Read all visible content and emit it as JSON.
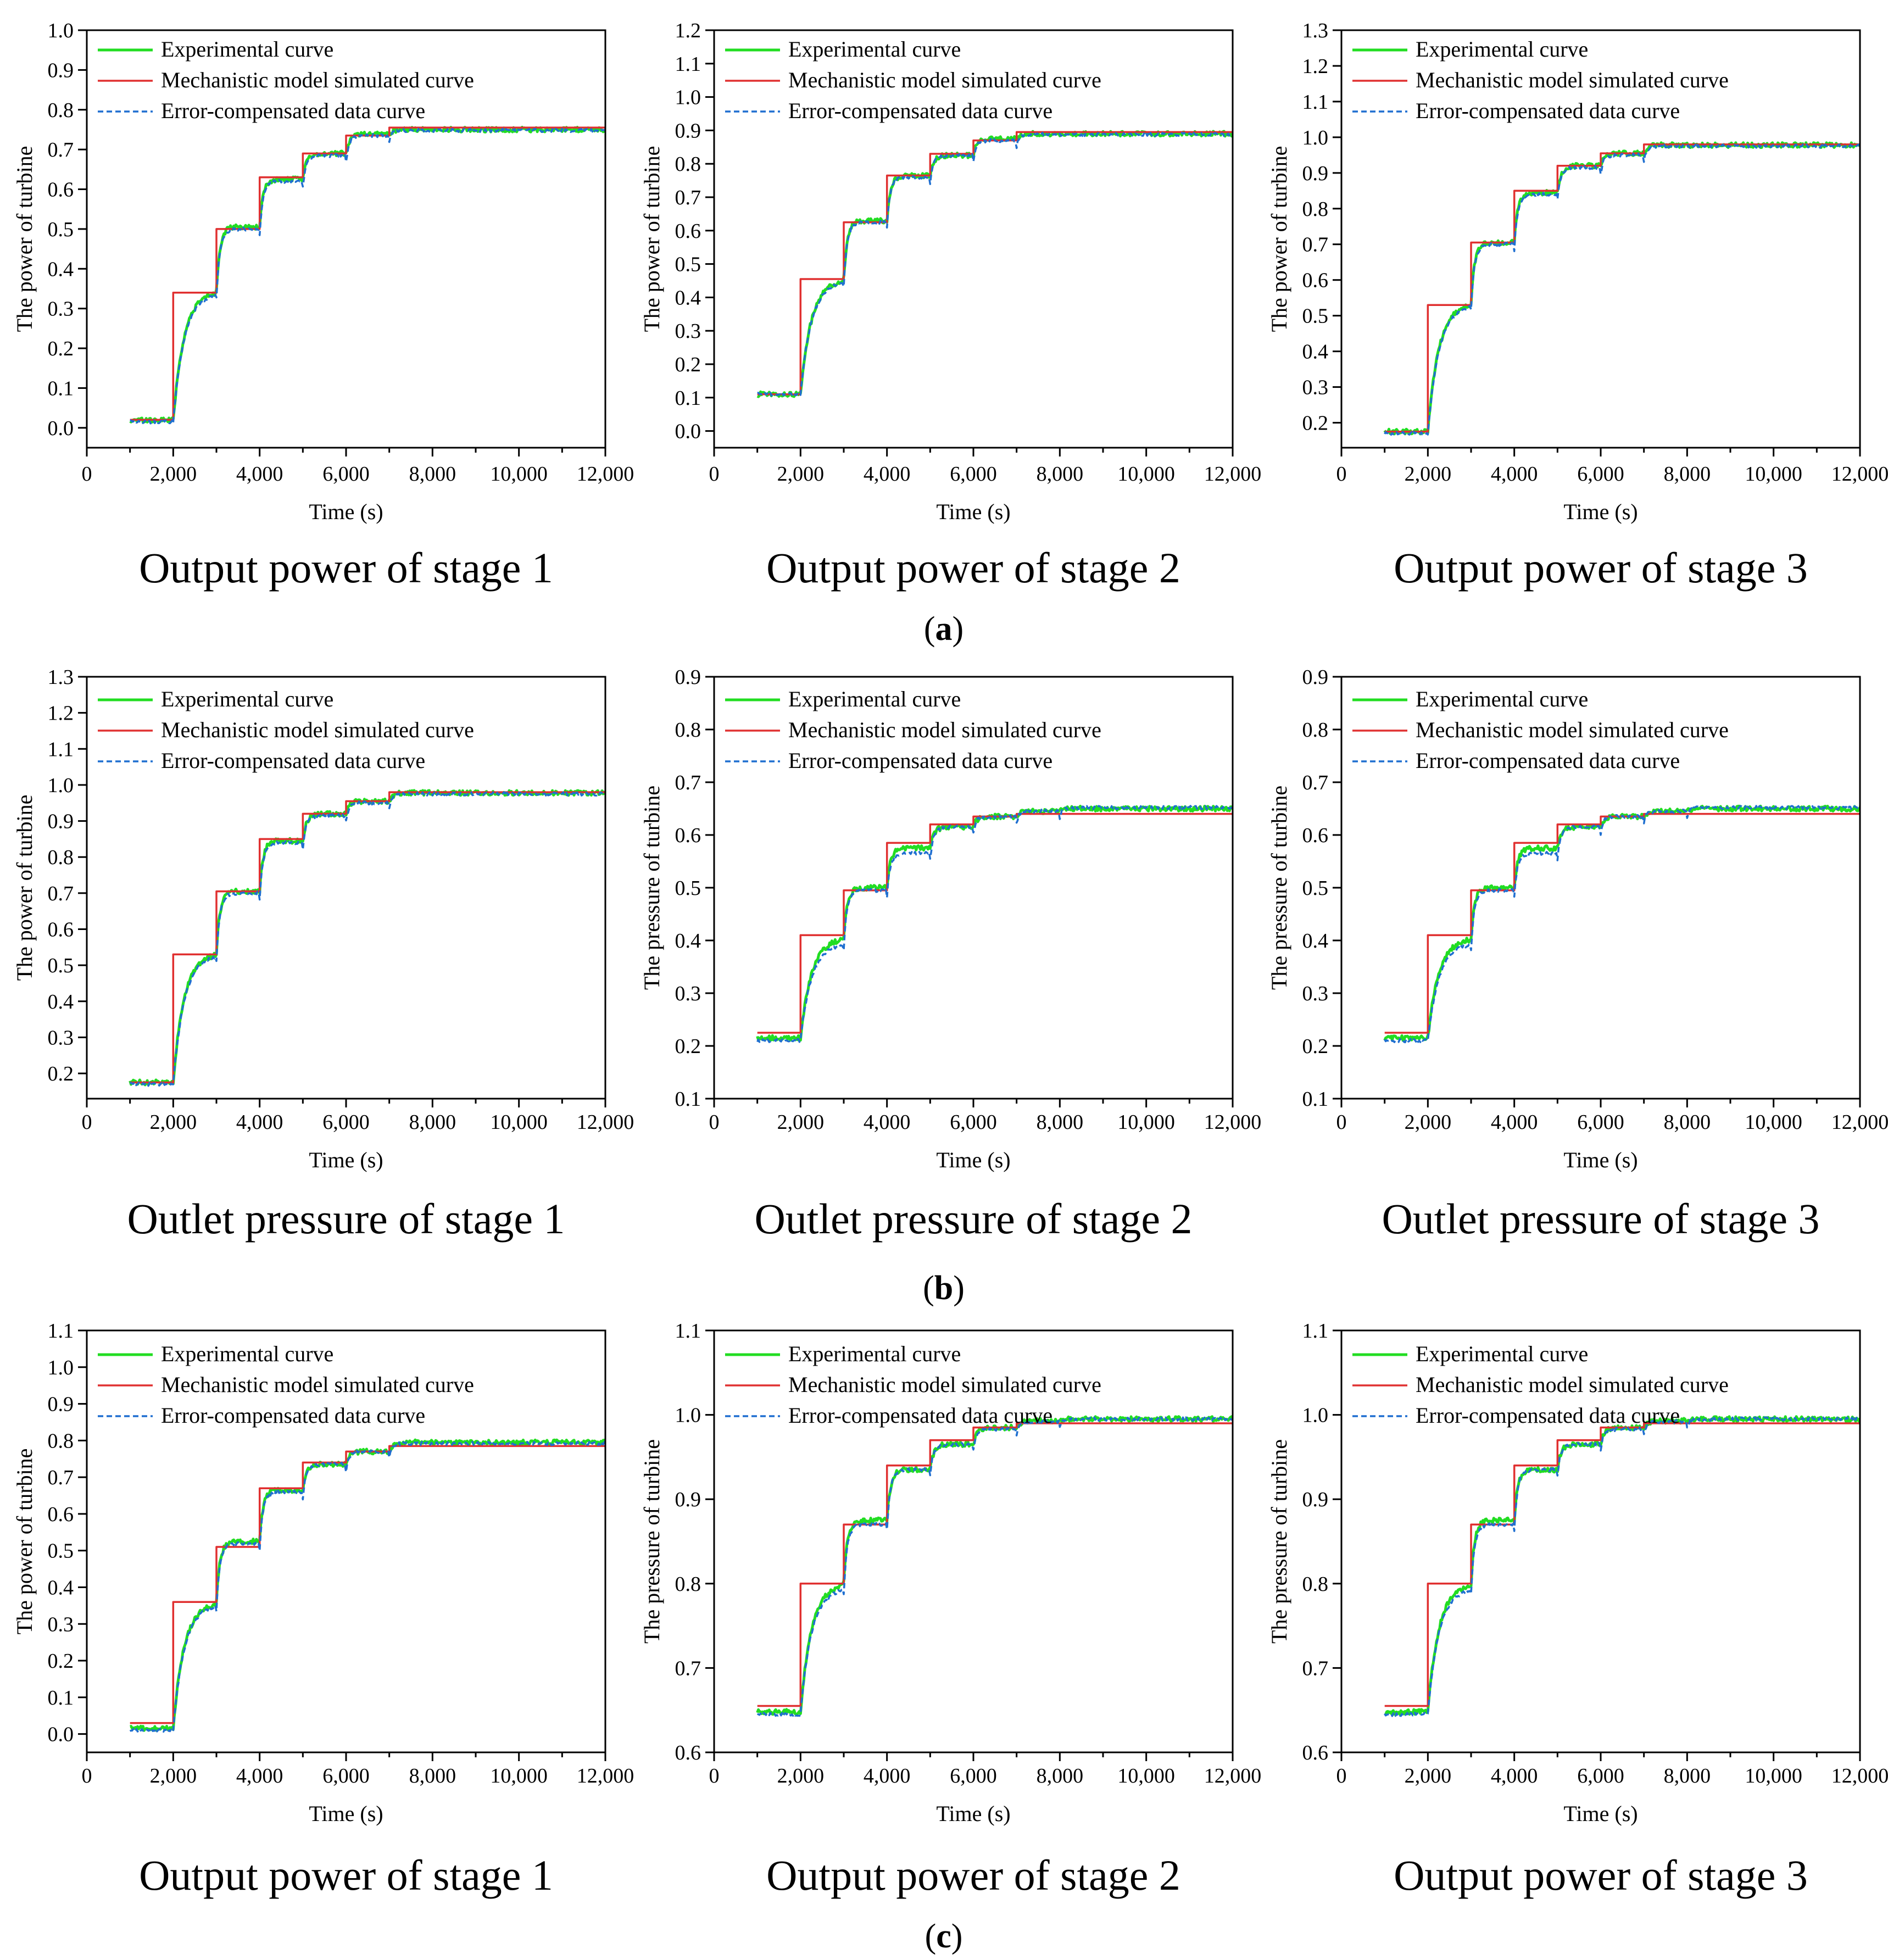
{
  "colors": {
    "experimental": "#22dd22",
    "mechanistic": "#e03030",
    "compensated": "#1f6fd0"
  },
  "legend_labels": [
    "Experimental curve",
    "Mechanistic model simulated curve",
    "Error-compensated data curve"
  ],
  "row_labels": [
    {
      "open": "(",
      "letter": "a",
      "close": ")"
    },
    {
      "open": "(",
      "letter": "b",
      "close": ")"
    },
    {
      "open": "(",
      "letter": "c",
      "close": ")"
    }
  ],
  "chart_data": [
    {
      "type": "line",
      "row": 0,
      "col": 0,
      "caption": "Output power of stage 1",
      "xlabel": "Time (s)",
      "ylabel": "The power of turbine",
      "xlim": [
        0,
        12000
      ],
      "xticks": [
        0,
        2000,
        4000,
        6000,
        8000,
        10000,
        12000
      ],
      "xtick_labels": [
        "0",
        "2,000",
        "4,000",
        "6,000",
        "8,000",
        "10,000",
        "12,000"
      ],
      "ylim": [
        -0.05,
        1.0
      ],
      "yticks": [
        0.0,
        0.1,
        0.2,
        0.3,
        0.4,
        0.5,
        0.6,
        0.7,
        0.8,
        0.9,
        1.0
      ],
      "ytick_labels": [
        "0.0",
        "0.1",
        "0.2",
        "0.3",
        "0.4",
        "0.5",
        "0.6",
        "0.7",
        "0.8",
        "0.9",
        "1.0"
      ],
      "x_range": [
        1000,
        12000
      ],
      "step_times": [
        2000,
        3000,
        4000,
        5000,
        6000,
        7000
      ],
      "series": [
        {
          "name": "Mechanistic model simulated curve",
          "levels": [
            0.02,
            0.34,
            0.5,
            0.63,
            0.69,
            0.735,
            0.755
          ]
        },
        {
          "name": "Experimental curve",
          "levels": [
            0.02,
            0.345,
            0.505,
            0.625,
            0.69,
            0.74,
            0.75
          ]
        },
        {
          "name": "Error-compensated data curve",
          "levels": [
            0.015,
            0.34,
            0.5,
            0.62,
            0.685,
            0.735,
            0.748
          ]
        }
      ]
    },
    {
      "type": "line",
      "row": 0,
      "col": 1,
      "caption": "Output power of stage 2",
      "xlabel": "Time (s)",
      "ylabel": "The power of turbine",
      "xlim": [
        0,
        12000
      ],
      "xticks": [
        0,
        2000,
        4000,
        6000,
        8000,
        10000,
        12000
      ],
      "xtick_labels": [
        "0",
        "2,000",
        "4,000",
        "6,000",
        "8,000",
        "10,000",
        "12,000"
      ],
      "ylim": [
        -0.05,
        1.2
      ],
      "yticks": [
        0.0,
        0.1,
        0.2,
        0.3,
        0.4,
        0.5,
        0.6,
        0.7,
        0.8,
        0.9,
        1.0,
        1.1,
        1.2
      ],
      "ytick_labels": [
        "0.0",
        "0.1",
        "0.2",
        "0.3",
        "0.4",
        "0.5",
        "0.6",
        "0.7",
        "0.8",
        "0.9",
        "1.0",
        "1.1",
        "1.2"
      ],
      "x_range": [
        1000,
        12000
      ],
      "step_times": [
        2000,
        3000,
        4000,
        5000,
        6000,
        7000
      ],
      "series": [
        {
          "name": "Mechanistic model simulated curve",
          "levels": [
            0.11,
            0.455,
            0.625,
            0.765,
            0.83,
            0.87,
            0.895
          ]
        },
        {
          "name": "Experimental curve",
          "levels": [
            0.11,
            0.455,
            0.63,
            0.765,
            0.825,
            0.875,
            0.89
          ]
        },
        {
          "name": "Error-compensated data curve",
          "levels": [
            0.11,
            0.45,
            0.625,
            0.76,
            0.825,
            0.87,
            0.888
          ]
        }
      ]
    },
    {
      "type": "line",
      "row": 0,
      "col": 2,
      "caption": "Output power of stage 3",
      "xlabel": "Time (s)",
      "ylabel": "The power of turbine",
      "xlim": [
        0,
        12000
      ],
      "xticks": [
        0,
        2000,
        4000,
        6000,
        8000,
        10000,
        12000
      ],
      "xtick_labels": [
        "0",
        "2,000",
        "4,000",
        "6,000",
        "8,000",
        "10,000",
        "12,000"
      ],
      "ylim": [
        0.13,
        1.3
      ],
      "yticks": [
        0.2,
        0.3,
        0.4,
        0.5,
        0.6,
        0.7,
        0.8,
        0.9,
        1.0,
        1.1,
        1.2,
        1.3
      ],
      "ytick_labels": [
        "0.2",
        "0.3",
        "0.4",
        "0.5",
        "0.6",
        "0.7",
        "0.8",
        "0.9",
        "1.0",
        "1.1",
        "1.2",
        "1.3"
      ],
      "x_range": [
        1000,
        12000
      ],
      "step_times": [
        2000,
        3000,
        4000,
        5000,
        6000,
        7000
      ],
      "series": [
        {
          "name": "Mechanistic model simulated curve",
          "levels": [
            0.175,
            0.53,
            0.705,
            0.85,
            0.92,
            0.955,
            0.98
          ]
        },
        {
          "name": "Experimental curve",
          "levels": [
            0.175,
            0.535,
            0.705,
            0.845,
            0.92,
            0.955,
            0.978
          ]
        },
        {
          "name": "Error-compensated data curve",
          "levels": [
            0.17,
            0.53,
            0.7,
            0.84,
            0.915,
            0.95,
            0.975
          ]
        }
      ]
    },
    {
      "type": "line",
      "row": 1,
      "col": 0,
      "caption": "Outlet pressure of stage 1",
      "xlabel": "Time (s)",
      "ylabel": "The power of turbine",
      "xlim": [
        0,
        12000
      ],
      "xticks": [
        0,
        2000,
        4000,
        6000,
        8000,
        10000,
        12000
      ],
      "xtick_labels": [
        "0",
        "2,000",
        "4,000",
        "6,000",
        "8,000",
        "10,000",
        "12,000"
      ],
      "ylim": [
        0.13,
        1.3
      ],
      "yticks": [
        0.2,
        0.3,
        0.4,
        0.5,
        0.6,
        0.7,
        0.8,
        0.9,
        1.0,
        1.1,
        1.2,
        1.3
      ],
      "ytick_labels": [
        "0.2",
        "0.3",
        "0.4",
        "0.5",
        "0.6",
        "0.7",
        "0.8",
        "0.9",
        "1.0",
        "1.1",
        "1.2",
        "1.3"
      ],
      "x_range": [
        1000,
        12000
      ],
      "step_times": [
        2000,
        3000,
        4000,
        5000,
        6000,
        7000
      ],
      "series": [
        {
          "name": "Mechanistic model simulated curve",
          "levels": [
            0.175,
            0.53,
            0.705,
            0.85,
            0.92,
            0.955,
            0.98
          ]
        },
        {
          "name": "Experimental curve",
          "levels": [
            0.175,
            0.535,
            0.705,
            0.845,
            0.92,
            0.955,
            0.978
          ]
        },
        {
          "name": "Error-compensated data curve",
          "levels": [
            0.17,
            0.53,
            0.7,
            0.84,
            0.915,
            0.95,
            0.975
          ]
        }
      ]
    },
    {
      "type": "line",
      "row": 1,
      "col": 1,
      "caption": "Outlet pressure of stage 2",
      "xlabel": "Time (s)",
      "ylabel": "The pressure of turbine",
      "xlim": [
        0,
        12000
      ],
      "xticks": [
        0,
        2000,
        4000,
        6000,
        8000,
        10000,
        12000
      ],
      "xtick_labels": [
        "0",
        "2,000",
        "4,000",
        "6,000",
        "8,000",
        "10,000",
        "12,000"
      ],
      "ylim": [
        0.1,
        0.9
      ],
      "yticks": [
        0.1,
        0.2,
        0.3,
        0.4,
        0.5,
        0.6,
        0.7,
        0.8,
        0.9
      ],
      "ytick_labels": [
        "0.1",
        "0.2",
        "0.3",
        "0.4",
        "0.5",
        "0.6",
        "0.7",
        "0.8",
        "0.9"
      ],
      "x_range": [
        1000,
        12000
      ],
      "step_times": [
        2000,
        3000,
        4000,
        5000,
        6000,
        7000,
        8000
      ],
      "series": [
        {
          "name": "Mechanistic model simulated curve",
          "levels": [
            0.225,
            0.41,
            0.495,
            0.585,
            0.62,
            0.635,
            0.64,
            0.64
          ]
        },
        {
          "name": "Experimental curve",
          "levels": [
            0.215,
            0.405,
            0.5,
            0.575,
            0.615,
            0.635,
            0.645,
            0.65
          ]
        },
        {
          "name": "Error-compensated data curve",
          "levels": [
            0.21,
            0.395,
            0.495,
            0.565,
            0.615,
            0.635,
            0.645,
            0.652
          ]
        }
      ]
    },
    {
      "type": "line",
      "row": 1,
      "col": 2,
      "caption": "Outlet pressure of stage 3",
      "xlabel": "Time (s)",
      "ylabel": "The pressure of turbine",
      "xlim": [
        0,
        12000
      ],
      "xticks": [
        0,
        2000,
        4000,
        6000,
        8000,
        10000,
        12000
      ],
      "xtick_labels": [
        "0",
        "2,000",
        "4,000",
        "6,000",
        "8,000",
        "10,000",
        "12,000"
      ],
      "ylim": [
        0.1,
        0.9
      ],
      "yticks": [
        0.1,
        0.2,
        0.3,
        0.4,
        0.5,
        0.6,
        0.7,
        0.8,
        0.9
      ],
      "ytick_labels": [
        "0.1",
        "0.2",
        "0.3",
        "0.4",
        "0.5",
        "0.6",
        "0.7",
        "0.8",
        "0.9"
      ],
      "x_range": [
        1000,
        12000
      ],
      "step_times": [
        2000,
        3000,
        4000,
        5000,
        6000,
        7000,
        8000
      ],
      "series": [
        {
          "name": "Mechanistic model simulated curve",
          "levels": [
            0.225,
            0.41,
            0.495,
            0.585,
            0.62,
            0.635,
            0.64,
            0.64
          ]
        },
        {
          "name": "Experimental curve",
          "levels": [
            0.215,
            0.405,
            0.5,
            0.575,
            0.615,
            0.635,
            0.645,
            0.65
          ]
        },
        {
          "name": "Error-compensated data curve",
          "levels": [
            0.21,
            0.395,
            0.495,
            0.565,
            0.615,
            0.635,
            0.645,
            0.652
          ]
        }
      ]
    },
    {
      "type": "line",
      "row": 2,
      "col": 0,
      "caption": "Output power of stage 1",
      "xlabel": "Time (s)",
      "ylabel": "The power of turbine",
      "xlim": [
        0,
        12000
      ],
      "xticks": [
        0,
        2000,
        4000,
        6000,
        8000,
        10000,
        12000
      ],
      "xtick_labels": [
        "0",
        "2,000",
        "4,000",
        "6,000",
        "8,000",
        "10,000",
        "12,000"
      ],
      "ylim": [
        -0.05,
        1.1
      ],
      "yticks": [
        0.0,
        0.1,
        0.2,
        0.3,
        0.4,
        0.5,
        0.6,
        0.7,
        0.8,
        0.9,
        1.0,
        1.1
      ],
      "ytick_labels": [
        "0.0",
        "0.1",
        "0.2",
        "0.3",
        "0.4",
        "0.5",
        "0.6",
        "0.7",
        "0.8",
        "0.9",
        "1.0",
        "1.1"
      ],
      "x_range": [
        1000,
        12000
      ],
      "step_times": [
        2000,
        3000,
        4000,
        5000,
        6000,
        7000
      ],
      "series": [
        {
          "name": "Mechanistic model simulated curve",
          "levels": [
            0.03,
            0.36,
            0.51,
            0.67,
            0.74,
            0.77,
            0.785
          ]
        },
        {
          "name": "Experimental curve",
          "levels": [
            0.015,
            0.36,
            0.525,
            0.665,
            0.735,
            0.77,
            0.795
          ]
        },
        {
          "name": "Error-compensated data curve",
          "levels": [
            0.01,
            0.355,
            0.52,
            0.66,
            0.735,
            0.77,
            0.792
          ]
        }
      ]
    },
    {
      "type": "line",
      "row": 2,
      "col": 1,
      "caption": "Output power of stage 2",
      "xlabel": "Time (s)",
      "ylabel": "The pressure of turbine",
      "xlim": [
        0,
        12000
      ],
      "xticks": [
        0,
        2000,
        4000,
        6000,
        8000,
        10000,
        12000
      ],
      "xtick_labels": [
        "0",
        "2,000",
        "4,000",
        "6,000",
        "8,000",
        "10,000",
        "12,000"
      ],
      "ylim": [
        0.6,
        1.1
      ],
      "yticks": [
        0.6,
        0.7,
        0.8,
        0.9,
        1.0,
        1.1
      ],
      "ytick_labels": [
        "0.6",
        "0.7",
        "0.8",
        "0.9",
        "1.0",
        "1.1"
      ],
      "x_range": [
        1000,
        12000
      ],
      "step_times": [
        2000,
        3000,
        4000,
        5000,
        6000,
        7000,
        8000
      ],
      "series": [
        {
          "name": "Mechanistic model simulated curve",
          "levels": [
            0.655,
            0.8,
            0.87,
            0.94,
            0.97,
            0.985,
            0.99,
            0.99
          ]
        },
        {
          "name": "Experimental curve",
          "levels": [
            0.648,
            0.8,
            0.875,
            0.935,
            0.965,
            0.985,
            0.993,
            0.995
          ]
        },
        {
          "name": "Error-compensated data curve",
          "levels": [
            0.645,
            0.795,
            0.87,
            0.935,
            0.965,
            0.983,
            0.992,
            0.995
          ]
        }
      ]
    },
    {
      "type": "line",
      "row": 2,
      "col": 2,
      "caption": "Output power of stage 3",
      "xlabel": "Time (s)",
      "ylabel": "The pressure of turbine",
      "xlim": [
        0,
        12000
      ],
      "xticks": [
        0,
        2000,
        4000,
        6000,
        8000,
        10000,
        12000
      ],
      "xtick_labels": [
        "0",
        "2,000",
        "4,000",
        "6,000",
        "8,000",
        "10,000",
        "12,000"
      ],
      "ylim": [
        0.6,
        1.1
      ],
      "yticks": [
        0.6,
        0.7,
        0.8,
        0.9,
        1.0,
        1.1
      ],
      "ytick_labels": [
        "0.6",
        "0.7",
        "0.8",
        "0.9",
        "1.0",
        "1.1"
      ],
      "x_range": [
        1000,
        12000
      ],
      "step_times": [
        2000,
        3000,
        4000,
        5000,
        6000,
        7000,
        8000
      ],
      "series": [
        {
          "name": "Mechanistic model simulated curve",
          "levels": [
            0.655,
            0.8,
            0.87,
            0.94,
            0.97,
            0.985,
            0.99,
            0.99
          ]
        },
        {
          "name": "Experimental curve",
          "levels": [
            0.648,
            0.8,
            0.875,
            0.935,
            0.965,
            0.985,
            0.993,
            0.995
          ]
        },
        {
          "name": "Error-compensated data curve",
          "levels": [
            0.645,
            0.795,
            0.87,
            0.935,
            0.965,
            0.983,
            0.992,
            0.995
          ]
        }
      ]
    }
  ]
}
